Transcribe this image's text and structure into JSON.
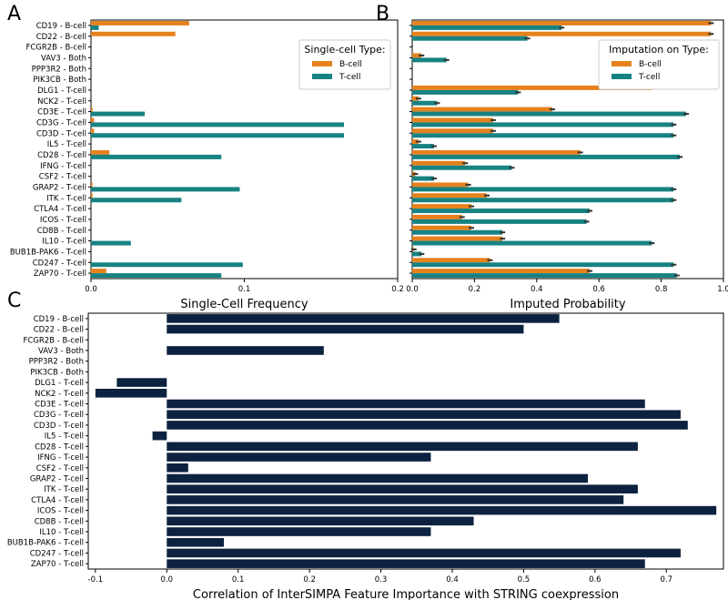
{
  "colors": {
    "bcell": "#e5821e",
    "tcell": "#178282",
    "dark": "#0d2240",
    "axis": "#000000",
    "err": "#333333"
  },
  "genes": [
    "CD19 - B-cell",
    "CD22 - B-cell",
    "FCGR2B - B-cell",
    "VAV3 - Both",
    "PPP3R2 - Both",
    "PIK3CB - Both",
    "DLG1 - T-cell",
    "NCK2 - T-cell",
    "CD3E - T-cell",
    "CD3G - T-cell",
    "CD3D - T-cell",
    "IL5 - T-cell",
    "CD28 - T-cell",
    "IFNG - T-cell",
    "CSF2 - T-cell",
    "GRAP2 - T-cell",
    "ITK - T-cell",
    "CTLA4 - T-cell",
    "ICOS - T-cell",
    "CD8B - T-cell",
    "IL10 - T-cell",
    "BUB1B-PAK6 - T-cell",
    "CD247 - T-cell",
    "ZAP70 - T-cell"
  ],
  "chart_data": [
    {
      "panel": "A",
      "type": "bar",
      "orientation": "horizontal",
      "xlabel": "Single-Cell Frequency",
      "xlim": [
        0.0,
        0.2
      ],
      "xticks": [
        "0.0",
        "0.1",
        "0.2"
      ],
      "xtick_values": [
        0.0,
        0.1,
        0.2
      ],
      "legend": {
        "title": "Single-cell Type:",
        "position": "top-right",
        "entries": [
          "B-cell",
          "T-cell"
        ]
      },
      "series": [
        {
          "name": "B-cell",
          "values": [
            0.064,
            0.055,
            0,
            0,
            0,
            0,
            0,
            0,
            0.001,
            0.002,
            0.002,
            0,
            0.012,
            0,
            0,
            0.001,
            0.001,
            0,
            0,
            0,
            0,
            0,
            0,
            0.01
          ]
        },
        {
          "name": "T-cell",
          "values": [
            0.005,
            0,
            0,
            0,
            0,
            0,
            0,
            0,
            0.035,
            0.165,
            0.165,
            0,
            0.085,
            0,
            0,
            0.097,
            0.059,
            0,
            0,
            0,
            0.026,
            0,
            0.099,
            0.085
          ]
        }
      ]
    },
    {
      "panel": "B",
      "type": "bar",
      "orientation": "horizontal",
      "xlabel": "Imputed Probability",
      "xlim": [
        0.0,
        1.0
      ],
      "xticks": [
        "0.0",
        "0.2",
        "0.4",
        "0.6",
        "0.8",
        "1.0"
      ],
      "xtick_values": [
        0.0,
        0.2,
        0.4,
        0.6,
        0.8,
        1.0
      ],
      "legend": {
        "title": "Imputation on Type:",
        "position": "top-right",
        "entries": [
          "B-cell",
          "T-cell"
        ]
      },
      "series": [
        {
          "name": "B-cell",
          "values": [
            0.96,
            0.96,
            0,
            0.03,
            0,
            0,
            0.77,
            0.02,
            0.45,
            0.26,
            0.26,
            0.02,
            0.54,
            0.17,
            0.01,
            0.18,
            0.24,
            0.19,
            0.16,
            0.19,
            0.29,
            0.005,
            0.25,
            0.57
          ]
        },
        {
          "name": "T-cell",
          "values": [
            0.48,
            0.37,
            0,
            0.11,
            0,
            0,
            0.34,
            0.08,
            0.88,
            0.84,
            0.84,
            0.07,
            0.86,
            0.32,
            0.07,
            0.84,
            0.84,
            0.57,
            0.56,
            0.29,
            0.77,
            0.03,
            0.84,
            0.85
          ]
        }
      ]
    },
    {
      "panel": "C",
      "type": "bar",
      "orientation": "horizontal",
      "xlabel": "Correlation of InterSIMPA Feature Importance with STRING coexpression",
      "xlim": [
        -0.11,
        0.78
      ],
      "xticks": [
        "-0.1",
        "0.0",
        "0.1",
        "0.2",
        "0.3",
        "0.4",
        "0.5",
        "0.6",
        "0.7"
      ],
      "xtick_values": [
        -0.1,
        0.0,
        0.1,
        0.2,
        0.3,
        0.4,
        0.5,
        0.6,
        0.7
      ],
      "series": [
        {
          "name": "correlation",
          "values": [
            0.55,
            0.5,
            0,
            0.22,
            0,
            0,
            -0.07,
            -0.1,
            0.67,
            0.72,
            0.73,
            -0.02,
            0.66,
            0.37,
            0.03,
            0.59,
            0.66,
            0.64,
            0.77,
            0.43,
            0.37,
            0.08,
            0.72,
            0.67
          ]
        }
      ]
    }
  ],
  "panels": {
    "a": "A",
    "b": "B",
    "c": "C"
  }
}
